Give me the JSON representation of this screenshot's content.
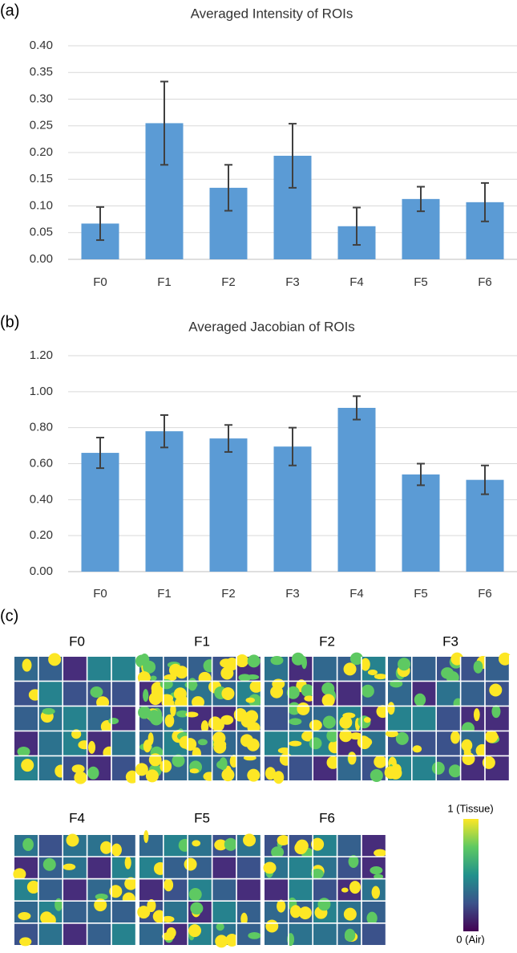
{
  "chart_data": [
    {
      "type": "bar",
      "panel_label": "(a)",
      "title": "Averaged Intensity of ROIs",
      "categories": [
        "F0",
        "F1",
        "F2",
        "F3",
        "F4",
        "F5",
        "F6"
      ],
      "values": [
        0.067,
        0.255,
        0.134,
        0.194,
        0.062,
        0.113,
        0.107
      ],
      "errors": [
        0.031,
        0.078,
        0.043,
        0.06,
        0.035,
        0.023,
        0.036
      ],
      "color": "#5b9bd5",
      "error_color": "#404040",
      "ylim": [
        0,
        0.4
      ],
      "yticks": [
        {
          "value": 0,
          "label": "0.00"
        },
        {
          "value": 0.05,
          "label": "0.05"
        },
        {
          "value": 0.1,
          "label": "0.10"
        },
        {
          "value": 0.15,
          "label": "0.15"
        },
        {
          "value": 0.2,
          "label": "0.20"
        },
        {
          "value": 0.25,
          "label": "0.25"
        },
        {
          "value": 0.3,
          "label": "0.30"
        },
        {
          "value": 0.35,
          "label": "0.35"
        },
        {
          "value": 0.4,
          "label": "0.40"
        }
      ],
      "grid": true
    },
    {
      "type": "bar",
      "panel_label": "(b)",
      "title": "Averaged Jacobian of ROIs",
      "categories": [
        "F0",
        "F1",
        "F2",
        "F3",
        "F4",
        "F5",
        "F6"
      ],
      "values": [
        0.66,
        0.78,
        0.74,
        0.695,
        0.91,
        0.54,
        0.51
      ],
      "errors": [
        0.085,
        0.09,
        0.075,
        0.105,
        0.065,
        0.06,
        0.08
      ],
      "color": "#5b9bd5",
      "error_color": "#404040",
      "ylim": [
        0,
        1.2
      ],
      "yticks": [
        {
          "value": 0,
          "label": "0.00"
        },
        {
          "value": 0.2,
          "label": "0.20"
        },
        {
          "value": 0.4,
          "label": "0.40"
        },
        {
          "value": 0.6,
          "label": "0.60"
        },
        {
          "value": 0.8,
          "label": "0.80"
        },
        {
          "value": 1,
          "label": "1.00"
        },
        {
          "value": 1.2,
          "label": "1.20"
        }
      ],
      "grid": true
    }
  ],
  "panel_c": {
    "panel_label": "(c)",
    "groups": [
      "F0",
      "F1",
      "F2",
      "F3",
      "F4",
      "F5",
      "F6"
    ],
    "colorbar": {
      "max_label": "1 (Tissue)",
      "min_label": "0 (Air)"
    }
  }
}
